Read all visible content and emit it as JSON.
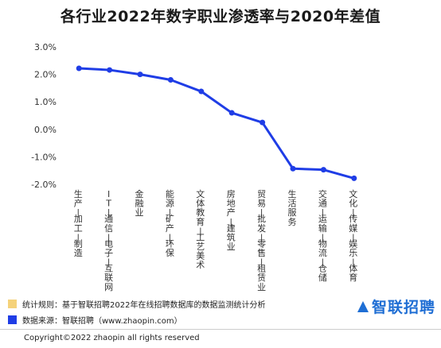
{
  "title": "各行业2022年数字职业渗透率与2020年差值",
  "chart_data": {
    "type": "line",
    "title": "各行业2022年数字职业渗透率与2020年差值",
    "categories": [
      "生产加工制造",
      "IT通信电子互联网",
      "金融业",
      "能源矿产环保",
      "文体教育工艺美术",
      "房地产建筑业",
      "贸易批发零售租赁业",
      "生活服务",
      "交通运输物流仓储",
      "文化传媒娱乐体育"
    ],
    "tick_labels": [
      "生产/加工/制造",
      "IT/通信/电子/互联网",
      "金融业",
      "能源/矿产/环保",
      "文体教育/工艺美术",
      "房地产/建筑业",
      "贸易/批发/零售/租赁业",
      "生活服务",
      "交通/运输/物流/仓储",
      "文化/传媒/娱乐/体育"
    ],
    "series": [
      {
        "values": [
          2.22,
          2.16,
          2.0,
          1.8,
          1.38,
          0.6,
          0.25,
          -1.43,
          -1.47,
          -1.78
        ],
        "color": "#1f3de6"
      }
    ],
    "ylim": [
      -2.0,
      3.0
    ],
    "yticks": [
      "3.0%",
      "2.0%",
      "1.0%",
      "0.0%",
      "-1.0%",
      "-2.0%"
    ],
    "ytick_values": [
      3.0,
      2.0,
      1.0,
      0.0,
      -1.0,
      -2.0
    ],
    "xlabel": "",
    "ylabel": "",
    "grid": false
  },
  "footnotes": [
    {
      "text": "统计规则：基于智联招聘2022年在线招聘数据库的数据监测统计分析",
      "color": "#f5d27a"
    },
    {
      "text": "数据来源：智联招聘（www.zhaopin.com）",
      "color": "#1f3de6"
    }
  ],
  "copyright": "Copyright©2022 zhaopin all rights reserved",
  "logo": {
    "text": "智联招聘",
    "color": "#1f6ed4"
  }
}
